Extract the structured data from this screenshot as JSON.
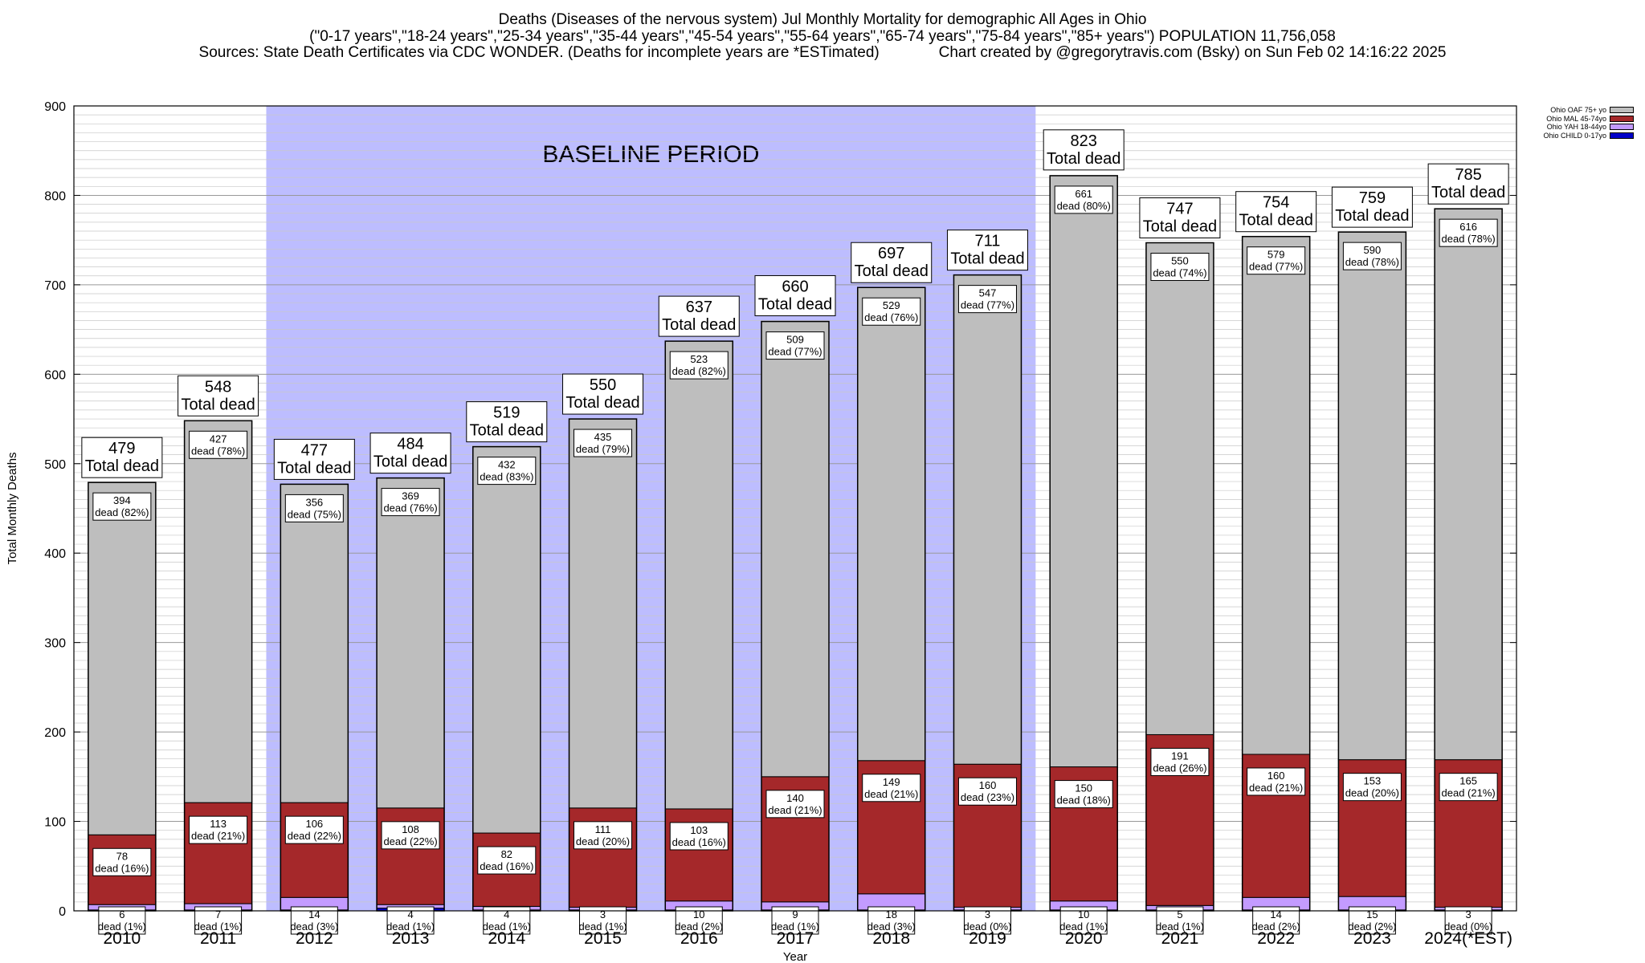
{
  "header": {
    "title_line1": "Deaths (Diseases of the nervous system) Jul Monthly Mortality for demographic All Ages in Ohio",
    "title_line2": "(\"0-17 years\",\"18-24 years\",\"25-34 years\",\"35-44 years\",\"45-54 years\",\"55-64 years\",\"65-74 years\",\"75-84 years\",\"85+ years\") POPULATION 11,756,058",
    "title_line3": "Sources: State Death Certificates via CDC WONDER. (Deaths for incomplete years are *ESTimated)              Chart created by @gregorytravis.com (Bsky) on Sun Feb 02 14:16:22 2025"
  },
  "chart_data": {
    "type": "bar",
    "stacked": true,
    "categories": [
      "2010",
      "2011",
      "2012",
      "2013",
      "2014",
      "2015",
      "2016",
      "2017",
      "2018",
      "2019",
      "2020",
      "2021",
      "2022",
      "2023",
      "2024(*EST)"
    ],
    "xlabel": "Year",
    "ylabel": "Total Monthly Deaths",
    "ylim": [
      0,
      900
    ],
    "yticks": [
      0,
      100,
      200,
      300,
      400,
      500,
      600,
      700,
      800,
      900
    ],
    "grid": true,
    "baseline_period": {
      "label": "BASELINE PERIOD",
      "from": "2012",
      "to": "2019",
      "color": "#bdbdff"
    },
    "series": [
      {
        "name": "Ohio CHILD 0-17yo",
        "color": "#0000c8",
        "values": [
          1,
          1,
          1,
          3,
          1,
          1,
          1,
          1,
          1,
          1,
          1,
          1,
          1,
          1,
          1
        ]
      },
      {
        "name": "Ohio YAH 18-44yo",
        "color": "#c39bff",
        "values": [
          6,
          7,
          14,
          4,
          4,
          3,
          10,
          9,
          18,
          3,
          10,
          5,
          14,
          15,
          3
        ]
      },
      {
        "name": "Ohio MAL 45-74yo",
        "color": "#a5282a",
        "values": [
          78,
          113,
          106,
          108,
          82,
          111,
          103,
          140,
          149,
          160,
          150,
          191,
          160,
          153,
          165
        ]
      },
      {
        "name": "Ohio OAF 75+ yo",
        "color": "#bebebe",
        "values": [
          394,
          427,
          356,
          369,
          432,
          435,
          523,
          509,
          529,
          547,
          661,
          550,
          579,
          590,
          616
        ]
      }
    ],
    "totals": [
      479,
      548,
      477,
      484,
      519,
      550,
      637,
      660,
      697,
      711,
      823,
      747,
      754,
      759,
      785
    ],
    "total_label": "Total dead",
    "segment_labels": {
      "young": [
        "6\ndead (1%)",
        "7\ndead (1%)",
        "14\ndead (3%)",
        "4\ndead (1%)",
        "4\ndead (1%)",
        "3\ndead (1%)",
        "10\ndead (2%)",
        "9\ndead (1%)",
        "18\ndead (3%)",
        "3\ndead (0%)",
        "10\ndead (1%)",
        "5\ndead (1%)",
        "14\ndead (2%)",
        "15\ndead (2%)",
        "3\ndead (0%)"
      ],
      "middle": [
        "78\ndead (16%)",
        "113\ndead (21%)",
        "106\ndead (22%)",
        "108\ndead (22%)",
        "82\ndead (16%)",
        "111\ndead (20%)",
        "103\ndead (16%)",
        "140\ndead (21%)",
        "149\ndead (21%)",
        "160\ndead (23%)",
        "150\ndead (18%)",
        "191\ndead (26%)",
        "160\ndead (21%)",
        "153\ndead (20%)",
        "165\ndead (21%)"
      ],
      "old": [
        "394\ndead (82%)",
        "427\ndead (78%)",
        "356\ndead (75%)",
        "369\ndead (76%)",
        "432\ndead (83%)",
        "435\ndead (79%)",
        "523\ndead (82%)",
        "509\ndead (77%)",
        "529\ndead (76%)",
        "547\ndead (77%)",
        "661\ndead (80%)",
        "550\ndead (74%)",
        "579\ndead (77%)",
        "590\ndead (78%)",
        "616\ndead (78%)"
      ]
    }
  },
  "legend": {
    "items": [
      {
        "label": "Ohio OAF 75+ yo",
        "color": "#bebebe"
      },
      {
        "label": "Ohio MAL 45-74yo",
        "color": "#a5282a"
      },
      {
        "label": "Ohio YAH 18-44yo",
        "color": "#c39bff"
      },
      {
        "label": "Ohio CHILD 0-17yo",
        "color": "#0000c8"
      }
    ]
  }
}
